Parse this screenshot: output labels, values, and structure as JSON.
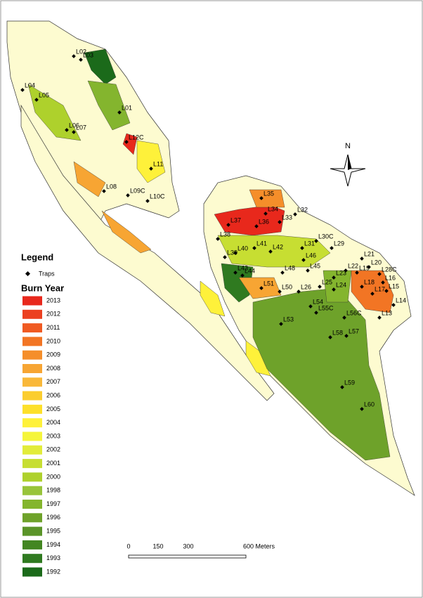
{
  "legend": {
    "title": "Legend",
    "traps": "Traps",
    "burn_year": "Burn Year",
    "items": [
      {
        "label": "2013",
        "color": "#e8281c"
      },
      {
        "label": "2012",
        "color": "#ec4020"
      },
      {
        "label": "2011",
        "color": "#f05a22"
      },
      {
        "label": "2010",
        "color": "#f27524"
      },
      {
        "label": "2009",
        "color": "#f58e2a"
      },
      {
        "label": "2008",
        "color": "#f7a533"
      },
      {
        "label": "2007",
        "color": "#f9b83a"
      },
      {
        "label": "2006",
        "color": "#fbcd2e"
      },
      {
        "label": "2005",
        "color": "#fde02a"
      },
      {
        "label": "2004",
        "color": "#fef13a"
      },
      {
        "label": "2003",
        "color": "#f5f53a"
      },
      {
        "label": "2002",
        "color": "#e2ec3a"
      },
      {
        "label": "2001",
        "color": "#c7de32"
      },
      {
        "label": "2000",
        "color": "#aed12c"
      },
      {
        "label": "1998",
        "color": "#98c43a"
      },
      {
        "label": "1997",
        "color": "#84b52e"
      },
      {
        "label": "1996",
        "color": "#6ea22a"
      },
      {
        "label": "1995",
        "color": "#5a9428"
      },
      {
        "label": "1994",
        "color": "#438622"
      },
      {
        "label": "1993",
        "color": "#2f7a20"
      },
      {
        "label": "1992",
        "color": "#1b6a1a"
      }
    ]
  },
  "north": "N",
  "scale": [
    "0",
    "150",
    "300",
    "600 Meters"
  ],
  "traps": [
    "L02",
    "L03",
    "L04",
    "L05",
    "L06",
    "L07",
    "L01",
    "L12C",
    "L11",
    "L08",
    "L09C",
    "L10C",
    "L35",
    "L37",
    "L34",
    "L36",
    "L33",
    "L32",
    "L30C",
    "L29",
    "L38",
    "L40",
    "L41",
    "L42",
    "L31",
    "L46",
    "L39",
    "L44",
    "L45",
    "L48",
    "L43",
    "L50",
    "L23",
    "L22",
    "L21",
    "L19",
    "L20",
    "L28C",
    "L18",
    "L16",
    "L17",
    "L15",
    "L14",
    "L13",
    "L25",
    "L24",
    "L26",
    "L51",
    "L54",
    "L55C",
    "L56C",
    "L53",
    "L58",
    "L57",
    "L59",
    "L60"
  ]
}
